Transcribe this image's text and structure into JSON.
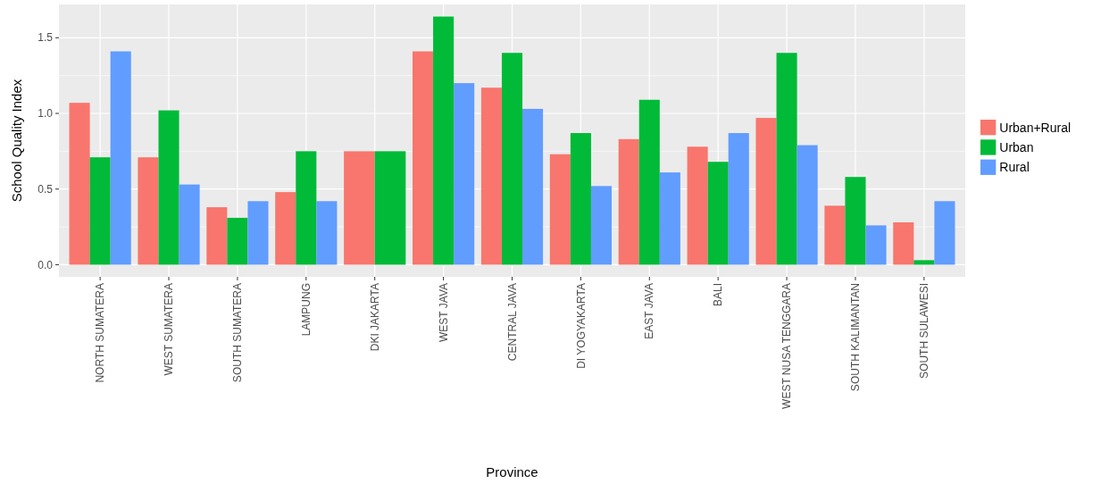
{
  "chart_data": {
    "type": "bar",
    "xlabel": "Province",
    "ylabel": "School Quality Index",
    "categories": [
      "NORTH SUMATERA",
      "WEST SUMATERA",
      "SOUTH SUMATERA",
      "LAMPUNG",
      "DKI JAKARTA",
      "WEST JAVA",
      "CENTRAL JAVA",
      "DI YOGYAKARTA",
      "EAST JAVA",
      "BALI",
      "WEST NUSA TENGGARA",
      "SOUTH KALIMANTAN",
      "SOUTH SULAWESI"
    ],
    "series": [
      {
        "name": "Urban+Rural",
        "color": "#f8766d",
        "values": [
          1.07,
          0.71,
          0.38,
          0.48,
          0.75,
          1.41,
          1.17,
          0.73,
          0.83,
          0.78,
          0.97,
          0.39,
          0.28
        ]
      },
      {
        "name": "Urban",
        "color": "#00ba38",
        "values": [
          0.71,
          1.02,
          0.31,
          0.75,
          0.75,
          1.64,
          1.4,
          0.87,
          1.09,
          0.68,
          1.4,
          0.58,
          0.03
        ]
      },
      {
        "name": "Rural",
        "color": "#619cff",
        "values": [
          1.41,
          0.53,
          0.42,
          0.42,
          null,
          1.2,
          1.03,
          0.52,
          0.61,
          0.87,
          0.79,
          0.26,
          0.42
        ]
      }
    ],
    "ylim": [
      -0.08,
      1.72
    ],
    "yticks": [
      {
        "value": 0,
        "label": "0.0"
      },
      {
        "value": 0.5,
        "label": "0.5"
      },
      {
        "value": 1,
        "label": "1.0"
      },
      {
        "value": 1.5,
        "label": "1.5"
      }
    ],
    "grid": true,
    "legend": "right"
  }
}
